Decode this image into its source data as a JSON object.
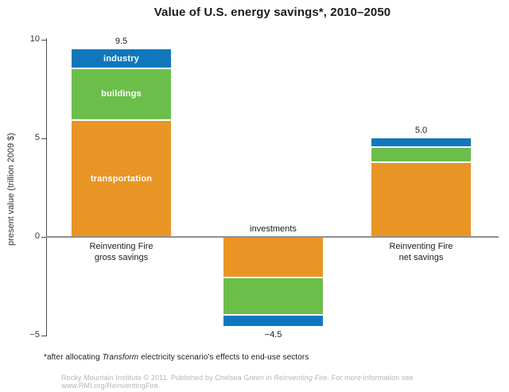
{
  "title": "Value of U.S. energy savings*, 2010–2050",
  "chart_data": {
    "type": "bar",
    "stacked": true,
    "title": "Value of U.S. energy savings*, 2010–2050",
    "xlabel": "",
    "ylabel": "present value (trillion 2009 $)",
    "ylim": [
      -5,
      10
    ],
    "yticks": [
      10,
      5,
      0,
      -5
    ],
    "ytick_labels": [
      "10",
      "5",
      "0",
      "−5"
    ],
    "grid": false,
    "legend": "labels drawn inside first bar segments",
    "sector_colors": {
      "transportation": "#E99526",
      "buildings": "#6CBE4B",
      "industry": "#1077BD"
    },
    "bars": [
      {
        "name": "gross-savings",
        "category_lines": [
          "Reinventing Fire",
          "gross savings"
        ],
        "total": 9.5,
        "total_label": "9.5",
        "direction": "up",
        "segments": [
          {
            "sector": "transportation",
            "value": 5.9,
            "label": "transportation"
          },
          {
            "sector": "buildings",
            "value": 2.6,
            "label": "buildings"
          },
          {
            "sector": "industry",
            "value": 1.0,
            "label": "industry"
          }
        ]
      },
      {
        "name": "investments",
        "category_lines": [],
        "top_label": "investments",
        "total": -4.5,
        "bottom_label": "−4.5",
        "direction": "down",
        "segments": [
          {
            "sector": "transportation",
            "value": -2.0,
            "label": ""
          },
          {
            "sector": "buildings",
            "value": -1.9,
            "label": ""
          },
          {
            "sector": "industry",
            "value": -0.6,
            "label": ""
          }
        ]
      },
      {
        "name": "net-savings",
        "category_lines": [
          "Reinventing Fire",
          "net savings"
        ],
        "total": 5.0,
        "total_label": "5.0",
        "direction": "up",
        "segments": [
          {
            "sector": "transportation",
            "value": 3.75,
            "label": ""
          },
          {
            "sector": "buildings",
            "value": 0.75,
            "label": ""
          },
          {
            "sector": "industry",
            "value": 0.5,
            "label": ""
          }
        ]
      }
    ]
  },
  "footnote_parts": [
    {
      "text": "*after allocating ",
      "italic": false
    },
    {
      "text": "Transform",
      "italic": true
    },
    {
      "text": " electricity scenario’s effects to end-use sectors",
      "italic": false
    }
  ],
  "attribution_parts": [
    {
      "text": "Rocky Mountain Institute © 2011. Published by Chelsea Green in ",
      "italic": false
    },
    {
      "text": "Reinventing Fire",
      "italic": true
    },
    {
      "text": ". For more information see www.RMI.org/ReinventingFire.",
      "italic": false
    }
  ]
}
